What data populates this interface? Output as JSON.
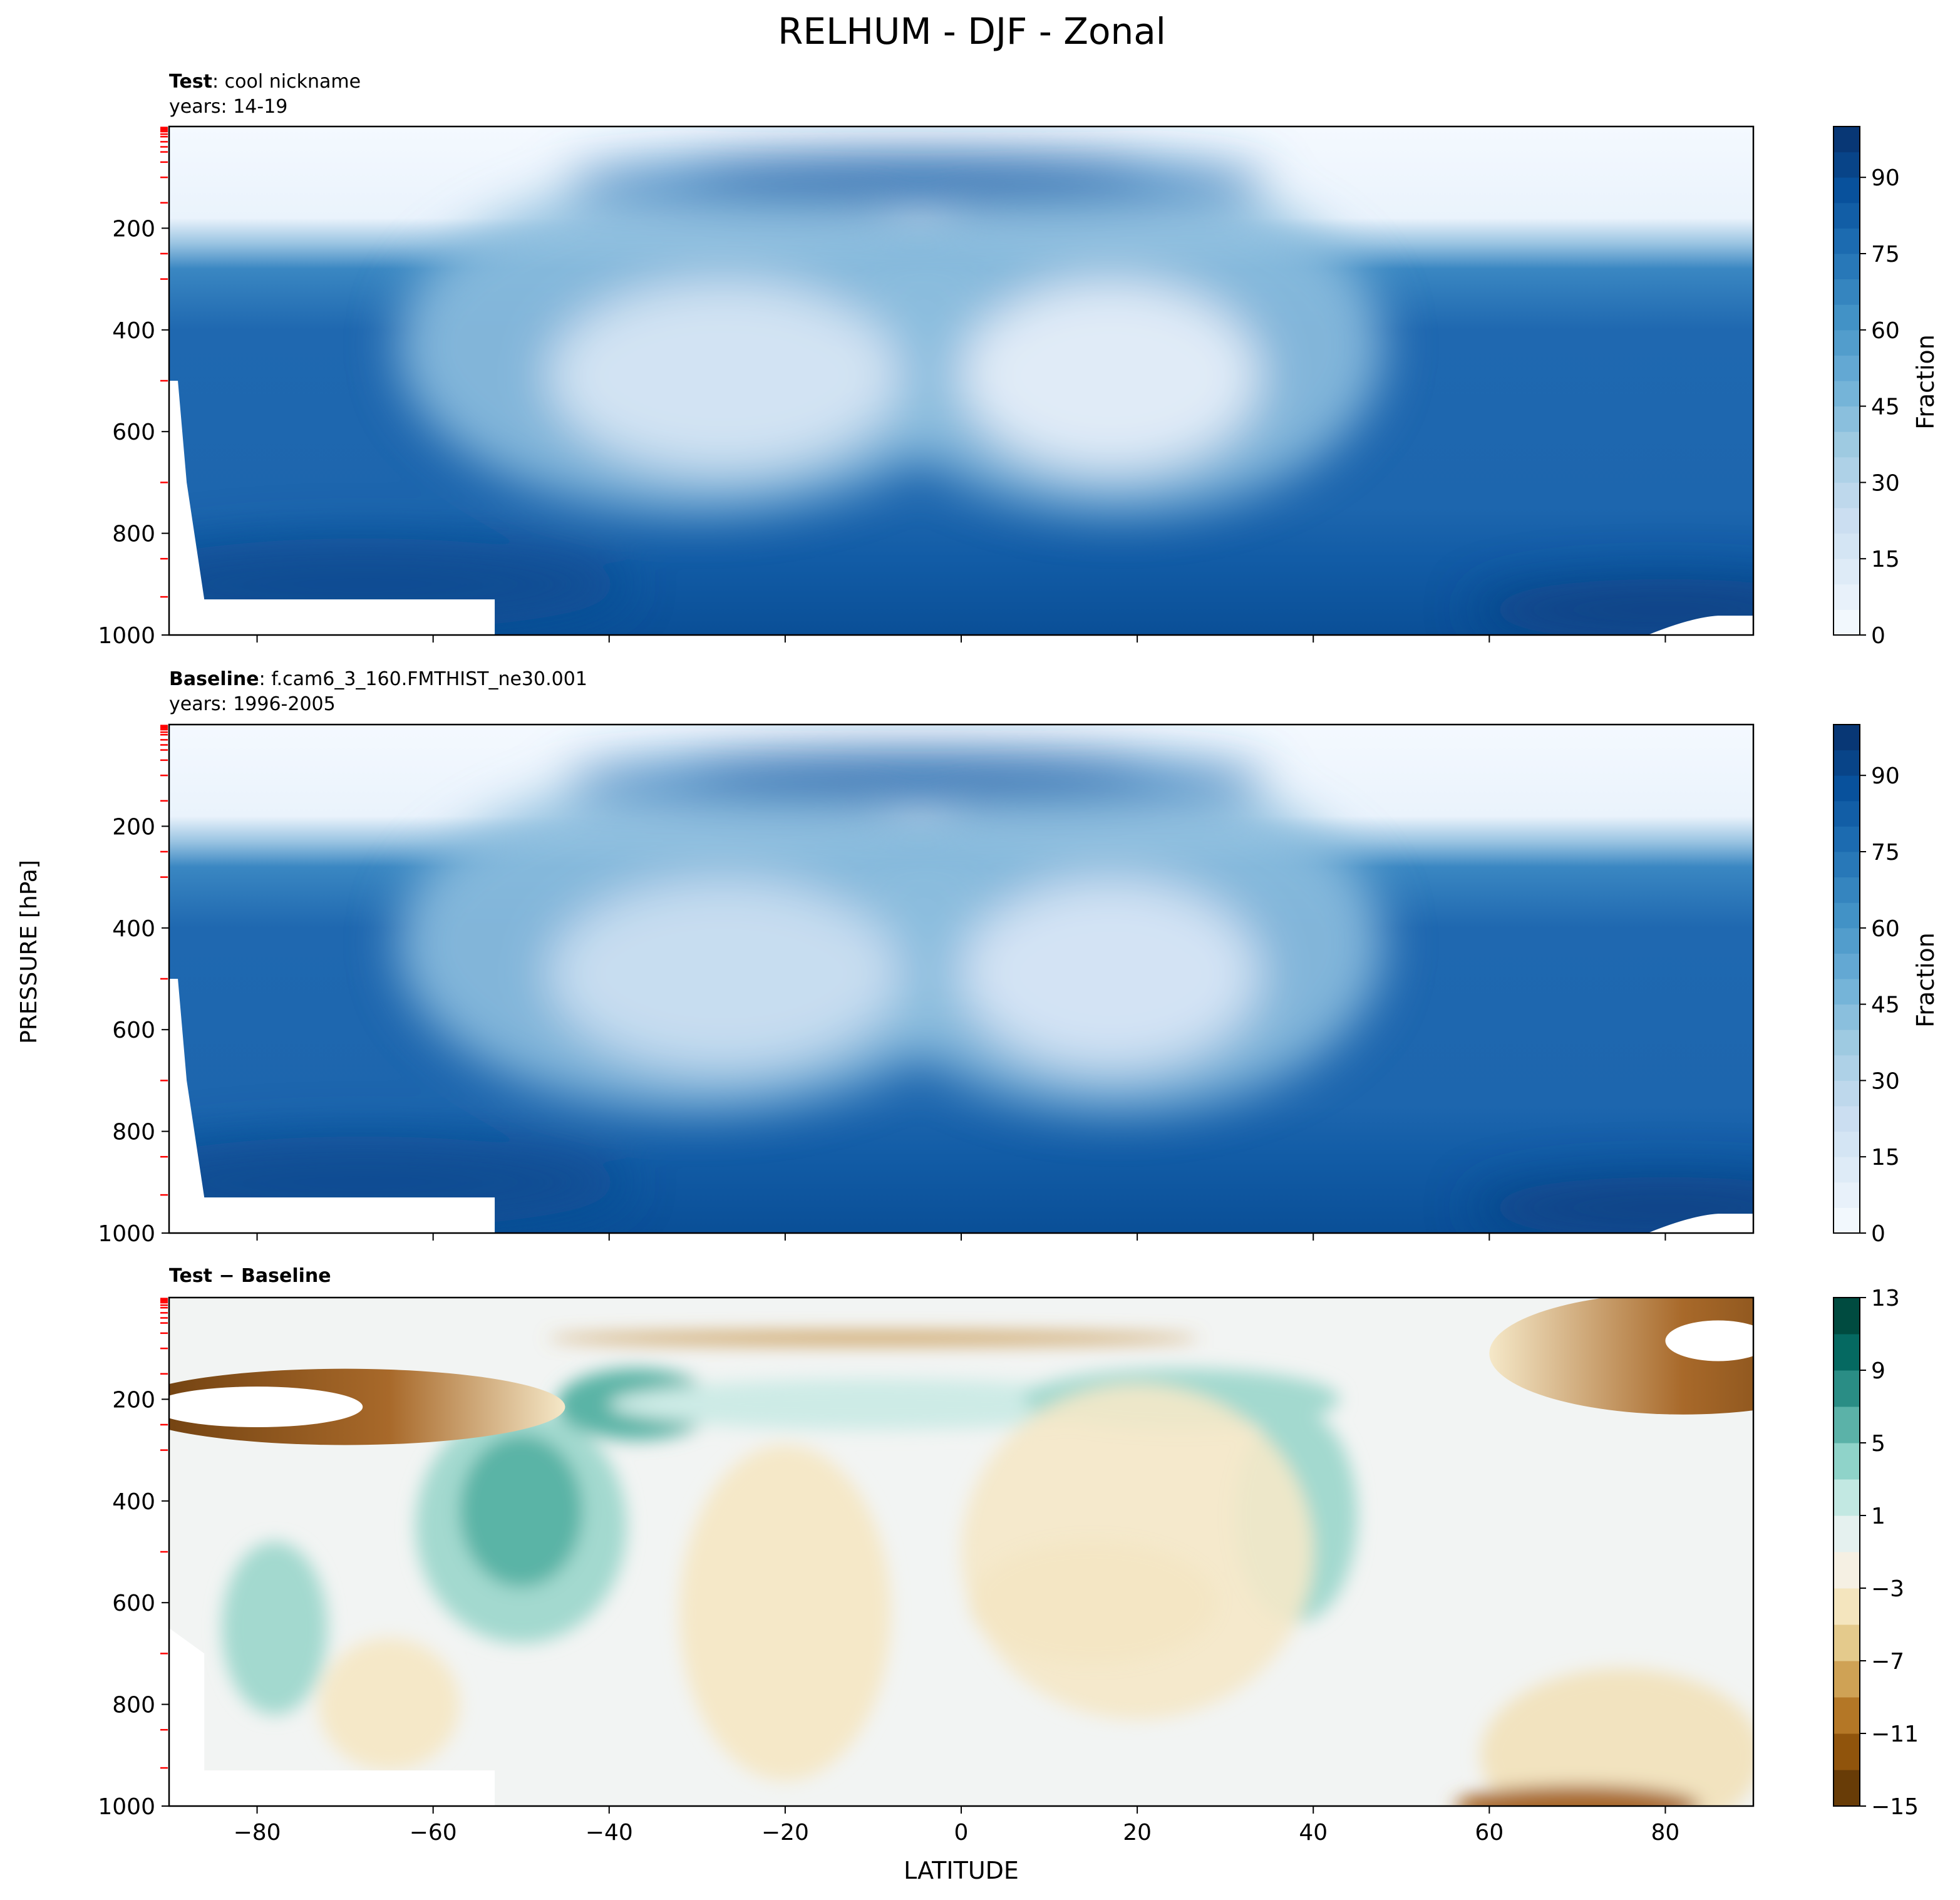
{
  "figure": {
    "title": "RELHUM - DJF - Zonal",
    "ylabel": "PRESSURE [hPa]",
    "xlabel": "LATITUDE"
  },
  "chart_data": [
    {
      "type": "heatmap",
      "title_bold": "Test",
      "title_rest": ": cool nickname",
      "subtitle": "years: 14-19",
      "xlim": [
        -90,
        90
      ],
      "ylim": [
        1000,
        0
      ],
      "x_ticks": [
        -80,
        -60,
        -40,
        -20,
        0,
        20,
        40,
        60,
        80
      ],
      "y_ticks": [
        200,
        400,
        600,
        800,
        1000
      ],
      "colorbar": {
        "label": "Fraction",
        "levels": [
          0,
          5,
          10,
          15,
          20,
          25,
          30,
          35,
          40,
          45,
          50,
          55,
          60,
          65,
          70,
          75,
          80,
          85,
          90,
          95,
          100
        ],
        "ticks": [
          0,
          15,
          30,
          45,
          60,
          75,
          90
        ],
        "colormap": "Blues"
      },
      "features": [
        {
          "desc": "dry upper level",
          "lat_range": [
            -90,
            90
          ],
          "p_range": [
            0,
            200
          ],
          "value": 2
        },
        {
          "desc": "moist tropical tropopause",
          "lat": -5,
          "p": 100,
          "value": 80
        },
        {
          "desc": "subtropical dry minimum",
          "lat": -27,
          "p": 500,
          "value": 25
        },
        {
          "desc": "subtropical dry minimum",
          "lat": 17,
          "p": 500,
          "value": 18
        },
        {
          "desc": "moist lower troposphere",
          "lat_range": [
            -90,
            90
          ],
          "p_range": [
            800,
            1000
          ],
          "value": 85
        }
      ]
    },
    {
      "type": "heatmap",
      "title_bold": "Baseline",
      "title_rest": ": f.cam6_3_160.FMTHIST_ne30.001",
      "subtitle": "years: 1996-2005",
      "xlim": [
        -90,
        90
      ],
      "ylim": [
        1000,
        0
      ],
      "x_ticks": [
        -80,
        -60,
        -40,
        -20,
        0,
        20,
        40,
        60,
        80
      ],
      "y_ticks": [
        200,
        400,
        600,
        800,
        1000
      ],
      "colorbar": {
        "label": "Fraction",
        "levels": [
          0,
          5,
          10,
          15,
          20,
          25,
          30,
          35,
          40,
          45,
          50,
          55,
          60,
          65,
          70,
          75,
          80,
          85,
          90,
          95,
          100
        ],
        "ticks": [
          0,
          15,
          30,
          45,
          60,
          75,
          90
        ],
        "colormap": "Blues"
      },
      "features": [
        {
          "desc": "dry upper level",
          "lat_range": [
            -90,
            90
          ],
          "p_range": [
            0,
            200
          ],
          "value": 2
        },
        {
          "desc": "moist tropical tropopause",
          "lat": -5,
          "p": 100,
          "value": 78
        },
        {
          "desc": "subtropical dry minimum",
          "lat": -27,
          "p": 500,
          "value": 27
        },
        {
          "desc": "subtropical dry minimum",
          "lat": 17,
          "p": 500,
          "value": 22
        },
        {
          "desc": "moist lower troposphere",
          "lat_range": [
            -90,
            90
          ],
          "p_range": [
            800,
            1000
          ],
          "value": 85
        }
      ]
    },
    {
      "type": "heatmap",
      "title_bold": "Test − Baseline",
      "title_rest": "",
      "subtitle": "",
      "xlim": [
        -90,
        90
      ],
      "ylim": [
        1000,
        0
      ],
      "x_ticks": [
        -80,
        -60,
        -40,
        -20,
        0,
        20,
        40,
        60,
        80
      ],
      "y_ticks": [
        200,
        400,
        600,
        800,
        1000
      ],
      "colorbar": {
        "label": "",
        "levels": [
          -15,
          -13,
          -11,
          -9,
          -7,
          -5,
          -3,
          -1,
          1,
          3,
          5,
          7,
          9,
          11,
          13
        ],
        "ticks": [
          -15,
          -11,
          -7,
          -3,
          1,
          5,
          9,
          13
        ],
        "colormap": "BrBG"
      },
      "features": [
        {
          "desc": "strong negative band",
          "lat_range": [
            -90,
            -62
          ],
          "p_range": [
            160,
            270
          ],
          "value": -15
        },
        {
          "desc": "strong negative band",
          "lat_range": [
            62,
            90
          ],
          "p_range": [
            20,
            230
          ],
          "value": -15
        },
        {
          "desc": "positive anomaly",
          "lat": -50,
          "p": 420,
          "value": 9
        },
        {
          "desc": "positive anomaly",
          "lat": -38,
          "p": 200,
          "value": 9
        },
        {
          "desc": "positive anomaly",
          "lat": 38,
          "p": 500,
          "value": 4
        },
        {
          "desc": "negative anomaly",
          "lat": 15,
          "p": 620,
          "value": -4
        },
        {
          "desc": "thin negative layer",
          "lat_range": [
            -35,
            30
          ],
          "p_range": [
            55,
            100
          ],
          "value": -9
        }
      ]
    }
  ]
}
